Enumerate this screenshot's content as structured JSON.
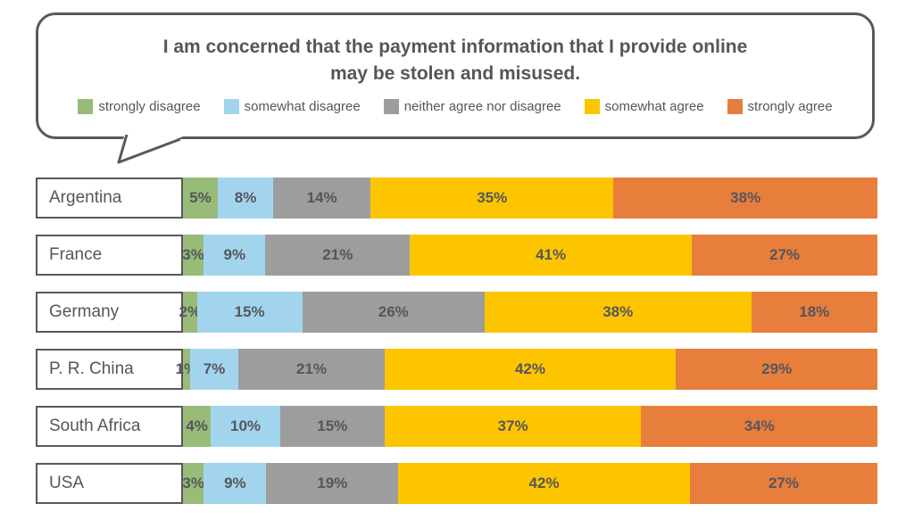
{
  "bubble": {
    "title_line1": "I am concerned that the payment information that I provide online",
    "title_line2": "may be stolen and misused."
  },
  "colors": {
    "outline": "#58595b",
    "text": "#55565a",
    "strongly_disagree": "#98bb78",
    "somewhat_disagree": "#a2d5ed",
    "neither": "#9d9d9d",
    "somewhat_agree": "#fdc500",
    "strongly_agree": "#e77e3c"
  },
  "chart_data": {
    "type": "bar",
    "stacked": true,
    "orientation": "horizontal",
    "title": "I am concerned that the payment information that I provide online may be stolen and misused.",
    "value_suffix": "%",
    "legend_position": "top",
    "categories": [
      "Argentina",
      "France",
      "Germany",
      "P. R. China",
      "South Africa",
      "USA"
    ],
    "series": [
      {
        "name": "strongly disagree",
        "color": "#98bb78",
        "values": [
          5,
          3,
          2,
          1,
          4,
          3
        ]
      },
      {
        "name": "somewhat disagree",
        "color": "#a2d5ed",
        "values": [
          8,
          9,
          15,
          7,
          10,
          9
        ]
      },
      {
        "name": "neither agree nor disagree",
        "color": "#9d9d9d",
        "values": [
          14,
          21,
          26,
          21,
          15,
          19
        ]
      },
      {
        "name": "somewhat agree",
        "color": "#fdc500",
        "values": [
          35,
          41,
          38,
          42,
          37,
          42
        ]
      },
      {
        "name": "strongly agree",
        "color": "#e77e3c",
        "values": [
          38,
          27,
          18,
          29,
          34,
          27
        ]
      }
    ]
  }
}
